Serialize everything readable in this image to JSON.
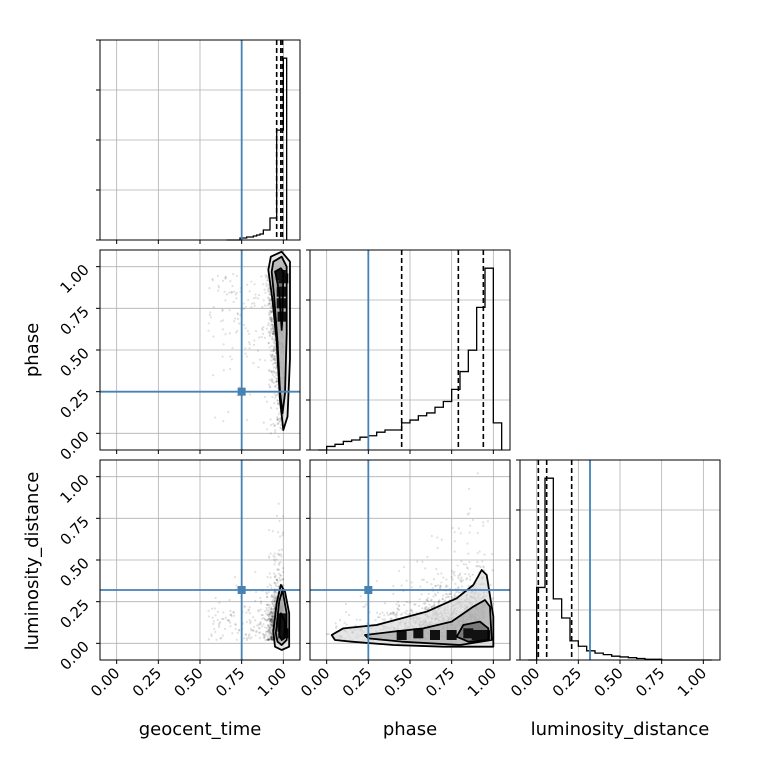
{
  "chart_data": {
    "type": "corner",
    "parameters": [
      "geocent_time",
      "phase",
      "luminosity_distance"
    ],
    "axis_range": [
      -0.1,
      1.1
    ],
    "tick_values": [
      0.0,
      0.25,
      0.5,
      0.75,
      1.0
    ],
    "tick_labels": [
      "0.00",
      "0.25",
      "0.50",
      "0.75",
      "1.00"
    ],
    "grid": true,
    "truth_color": "#4682b4",
    "truths": {
      "geocent_time": 0.75,
      "phase": 0.25,
      "luminosity_distance": 0.32
    },
    "quantiles": {
      "geocent_time": [
        0.96,
        0.985,
        0.995
      ],
      "phase": [
        0.45,
        0.79,
        0.94
      ],
      "luminosity_distance": [
        0.01,
        0.06,
        0.21
      ]
    },
    "histograms": {
      "geocent_time": {
        "edges": [
          0.66,
          0.68,
          0.7,
          0.72,
          0.74,
          0.76,
          0.78,
          0.8,
          0.82,
          0.84,
          0.86,
          0.88,
          0.9,
          0.92,
          0.94,
          0.96,
          0.98,
          1.0,
          1.02
        ],
        "counts": [
          0,
          0,
          0,
          0,
          2,
          2,
          3,
          3,
          4,
          5,
          6,
          10,
          10,
          22,
          22,
          110,
          110,
          182
        ]
      },
      "phase": {
        "edges": [
          -0.05,
          0.0,
          0.05,
          0.1,
          0.15,
          0.2,
          0.25,
          0.3,
          0.35,
          0.4,
          0.45,
          0.5,
          0.55,
          0.6,
          0.65,
          0.7,
          0.75,
          0.8,
          0.85,
          0.9,
          0.95,
          1.0,
          1.05
        ],
        "counts": [
          0,
          5,
          8,
          12,
          14,
          18,
          20,
          25,
          28,
          28,
          38,
          42,
          48,
          52,
          60,
          68,
          85,
          110,
          140,
          200,
          255,
          38
        ]
      },
      "luminosity_distance": {
        "edges": [
          -0.05,
          0.0,
          0.05,
          0.1,
          0.15,
          0.2,
          0.25,
          0.3,
          0.35,
          0.4,
          0.45,
          0.5,
          0.55,
          0.6,
          0.65,
          0.7,
          0.75,
          0.8,
          1.05
        ],
        "counts": [
          0,
          95,
          238,
          80,
          55,
          25,
          18,
          12,
          9,
          7,
          5,
          4,
          3,
          2,
          1,
          1,
          0,
          0
        ]
      }
    },
    "contours": {
      "phase_vs_geocent_time": [
        [
          [
            0.95,
            0.97
          ],
          [
            0.985,
            0.99
          ],
          [
            1.0,
            0.97
          ],
          [
            0.995,
            0.7
          ],
          [
            0.99,
            0.62
          ],
          [
            0.975,
            0.85
          ],
          [
            0.955,
            0.95
          ]
        ],
        [
          [
            0.94,
            1.03
          ],
          [
            0.99,
            1.06
          ],
          [
            1.02,
            1.0
          ],
          [
            1.02,
            0.6
          ],
          [
            1.01,
            0.24
          ],
          [
            0.995,
            0.12
          ],
          [
            0.98,
            0.25
          ],
          [
            0.965,
            0.55
          ],
          [
            0.945,
            0.82
          ],
          [
            0.93,
            0.97
          ]
        ],
        [
          [
            0.925,
            1.06
          ],
          [
            0.99,
            1.09
          ],
          [
            1.04,
            1.03
          ],
          [
            1.04,
            0.45
          ],
          [
            1.025,
            0.1
          ],
          [
            1.0,
            0.02
          ],
          [
            0.98,
            0.2
          ],
          [
            0.96,
            0.55
          ],
          [
            0.935,
            0.8
          ],
          [
            0.91,
            0.98
          ]
        ]
      ],
      "lumdist_vs_geocent_time": [
        [
          [
            0.975,
            0.05
          ],
          [
            0.985,
            0.18
          ],
          [
            1.01,
            0.13
          ],
          [
            1.005,
            0.03
          ],
          [
            0.99,
            0.02
          ]
        ],
        [
          [
            0.955,
            0.06
          ],
          [
            0.975,
            0.25
          ],
          [
            0.995,
            0.32
          ],
          [
            1.02,
            0.18
          ],
          [
            1.02,
            0.02
          ],
          [
            0.99,
            -0.01
          ],
          [
            0.965,
            0.01
          ]
        ],
        [
          [
            0.94,
            0.07
          ],
          [
            0.96,
            0.24
          ],
          [
            0.985,
            0.35
          ],
          [
            1.01,
            0.31
          ],
          [
            1.035,
            0.18
          ],
          [
            1.035,
            -0.02
          ],
          [
            0.99,
            -0.04
          ],
          [
            0.95,
            -0.02
          ]
        ]
      ],
      "lumdist_vs_phase": [
        [
          [
            0.78,
            0.04
          ],
          [
            0.82,
            0.11
          ],
          [
            0.92,
            0.13
          ],
          [
            0.97,
            0.09
          ],
          [
            0.97,
            0.02
          ],
          [
            0.85,
            0.01
          ]
        ],
        [
          [
            0.23,
            0.05
          ],
          [
            0.4,
            0.07
          ],
          [
            0.58,
            0.09
          ],
          [
            0.75,
            0.13
          ],
          [
            0.88,
            0.22
          ],
          [
            0.95,
            0.26
          ],
          [
            0.98,
            0.22
          ],
          [
            0.99,
            0.02
          ],
          [
            0.8,
            -0.01
          ],
          [
            0.45,
            0.01
          ],
          [
            0.25,
            0.03
          ]
        ],
        [
          [
            0.03,
            0.05
          ],
          [
            0.1,
            0.09
          ],
          [
            0.3,
            0.11
          ],
          [
            0.6,
            0.19
          ],
          [
            0.78,
            0.27
          ],
          [
            0.88,
            0.35
          ],
          [
            0.93,
            0.44
          ],
          [
            0.96,
            0.41
          ],
          [
            1.0,
            0.16
          ],
          [
            1.0,
            -0.02
          ],
          [
            0.7,
            -0.02
          ],
          [
            0.4,
            -0.01
          ],
          [
            0.15,
            0.01
          ],
          [
            0.05,
            0.02
          ]
        ]
      ]
    },
    "density_cores": {
      "phase_vs_geocent_time": [
        [
          1.0,
          0.93
        ],
        [
          0.99,
          0.85
        ],
        [
          0.99,
          0.78
        ],
        [
          0.995,
          0.7
        ],
        [
          0.985,
          0.95
        ]
      ],
      "lumdist_vs_geocent_time": [
        [
          1.0,
          0.06
        ],
        [
          0.995,
          0.1
        ],
        [
          0.995,
          0.15
        ]
      ],
      "lumdist_vs_phase": [
        [
          0.95,
          0.05
        ],
        [
          0.9,
          0.05
        ],
        [
          0.85,
          0.06
        ],
        [
          0.75,
          0.05
        ],
        [
          0.65,
          0.05
        ],
        [
          0.55,
          0.06
        ],
        [
          0.45,
          0.05
        ]
      ]
    }
  }
}
